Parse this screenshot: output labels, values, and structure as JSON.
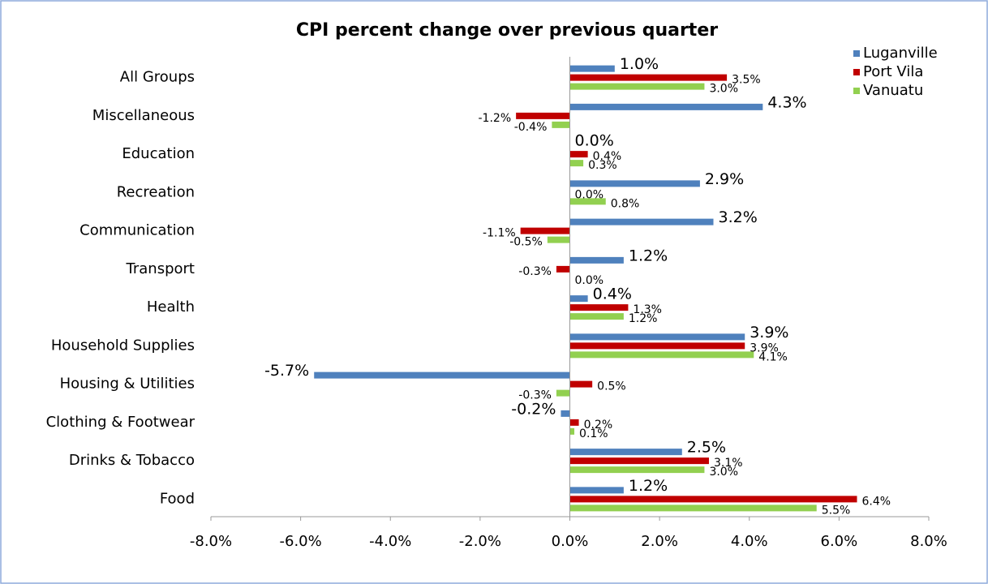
{
  "chart_data": {
    "type": "hbar",
    "title": "CPI  percent change over previous quarter",
    "categories": [
      "All Groups",
      "Miscellaneous",
      "Education",
      "Recreation",
      "Communication",
      "Transport",
      "Health",
      "Household Supplies",
      "Housing & Utilities",
      "Clothing  &  Footwear",
      "Drinks  & Tobacco",
      "Food"
    ],
    "series": [
      {
        "name": "Luganville",
        "color": "#4f81bd",
        "values": [
          1.0,
          4.3,
          0.0,
          2.9,
          3.2,
          1.2,
          0.4,
          3.9,
          -5.7,
          -0.2,
          2.5,
          1.2
        ],
        "value_labels": [
          "1.0%",
          "4.3%",
          "0.0%",
          "2.9%",
          "3.2%",
          "1.2%",
          "0.4%",
          "3.9%",
          "-5.7%",
          "-0.2%",
          "2.5%",
          "1.2%"
        ]
      },
      {
        "name": "Port Vila",
        "color": "#c00000",
        "values": [
          3.5,
          -1.2,
          0.4,
          0.0,
          -1.1,
          -0.3,
          1.3,
          3.9,
          0.5,
          0.2,
          3.1,
          6.4
        ],
        "value_labels": [
          "3.5%",
          "-1.2%",
          "0.4%",
          "0.0%",
          "-1.1%",
          "-0.3%",
          "1.3%",
          "3.9%",
          "0.5%",
          "0.2%",
          "3.1%",
          "6.4%"
        ]
      },
      {
        "name": "Vanuatu",
        "color": "#92d050",
        "values": [
          3.0,
          -0.4,
          0.3,
          0.8,
          -0.5,
          0.0,
          1.2,
          4.1,
          -0.3,
          0.1,
          3.0,
          5.5
        ],
        "value_labels": [
          "3.0%",
          "-0.4%",
          "0.3%",
          "0.8%",
          "-0.5%",
          "0.0%",
          "1.2%",
          "4.1%",
          "-0.3%",
          "0.1%",
          "3.0%",
          "5.5%"
        ]
      }
    ],
    "xlim": [
      -8,
      8
    ],
    "xticks": [
      {
        "value": -8,
        "label": "-8.0%"
      },
      {
        "value": -6,
        "label": "-6.0%"
      },
      {
        "value": -4,
        "label": "-4.0%"
      },
      {
        "value": -2,
        "label": "-2.0%"
      },
      {
        "value": 0,
        "label": "0.0%"
      },
      {
        "value": 2,
        "label": "2.0%"
      },
      {
        "value": 4,
        "label": "4.0%"
      },
      {
        "value": 6,
        "label": "6.0%"
      },
      {
        "value": 8,
        "label": "8.0%"
      }
    ],
    "legend": "top-right"
  }
}
